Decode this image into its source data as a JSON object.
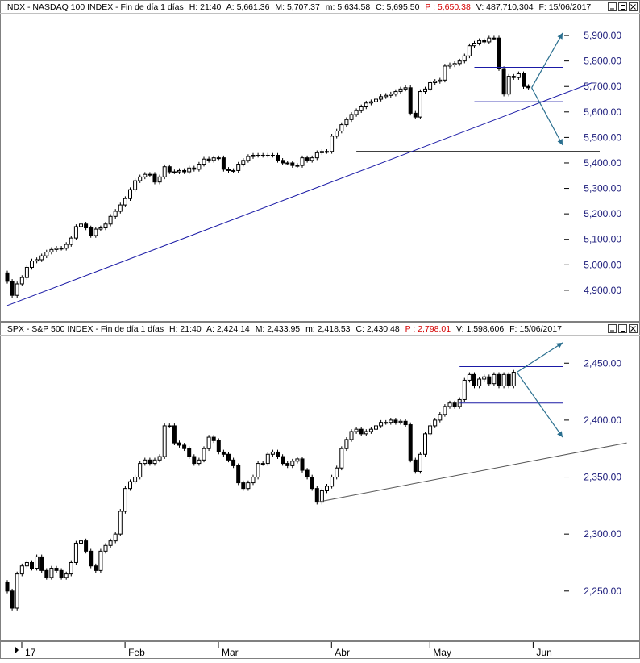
{
  "colors": {
    "panel_border": "#808080",
    "header_bg": "#ffffff",
    "candle": "#000000",
    "trendline_blue": "#1a1aa6",
    "trendline_black": "#000000",
    "projection_arrow": "#2a6f8f",
    "ytick_text": "#1a1a7a",
    "close_prev_red": "#d40000"
  },
  "panels": [
    {
      "id": "ndx",
      "header": {
        "symbol_desc": ".NDX - NASDAQ 100 INDEX - Fin de día 1 días",
        "h": "H: 21:40",
        "a": "A: 5,661.36",
        "m_high": "M: 5,707.37",
        "m_low": "m: 5,634.58",
        "c": "C: 5,695.50",
        "p": "P : 5,650.38",
        "v": "V: 487,710,304",
        "f": "F: 15/06/2017"
      },
      "window_icons": [
        "minimize-icon",
        "restore-icon",
        "close-icon"
      ]
    },
    {
      "id": "spx",
      "header": {
        "symbol_desc": ".SPX - S&P 500 INDEX - Fin de día 1 días",
        "h": "H: 21:40",
        "a": "A: 2,424.14",
        "m_high": "M: 2,433.95",
        "m_low": "m: 2,418.53",
        "c": "C: 2,430.48",
        "p": "P : 2,798.01",
        "v": "V: 1,598,606",
        "f": "F: 15/06/2017"
      },
      "window_icons": [
        "minimize-icon",
        "restore-icon",
        "close-icon"
      ]
    }
  ],
  "x_axis": {
    "labels": [
      "17",
      "Feb",
      "Mar",
      "Abr",
      "May",
      "Jun"
    ],
    "label_day_index": [
      0,
      21,
      40,
      63,
      83,
      104
    ]
  },
  "chart_data": [
    {
      "type": "candlestick",
      "title": ".NDX - NASDAQ 100 INDEX",
      "ylim": [
        4830,
        5935
      ],
      "yticks": [
        "5,900.00",
        "5,800.00",
        "5,700.00",
        "5,600.00",
        "5,500.00",
        "5,400.00",
        "5,300.00",
        "5,200.00",
        "5,100.00",
        "5,000.00",
        "4,900.00"
      ],
      "ytick_values": [
        5900,
        5800,
        5700,
        5600,
        5500,
        5400,
        5300,
        5200,
        5100,
        5000,
        4900
      ],
      "closes": [
        4935,
        4880,
        4925,
        4950,
        4990,
        5015,
        5020,
        5035,
        5050,
        5060,
        5065,
        5065,
        5080,
        5105,
        5150,
        5160,
        5145,
        5115,
        5140,
        5145,
        5160,
        5190,
        5210,
        5235,
        5260,
        5295,
        5330,
        5345,
        5355,
        5355,
        5325,
        5345,
        5385,
        5365,
        5365,
        5370,
        5365,
        5380,
        5375,
        5395,
        5415,
        5410,
        5420,
        5420,
        5375,
        5370,
        5370,
        5395,
        5410,
        5425,
        5430,
        5430,
        5430,
        5430,
        5430,
        5410,
        5400,
        5400,
        5390,
        5390,
        5420,
        5410,
        5420,
        5440,
        5445,
        5445,
        5505,
        5525,
        5550,
        5570,
        5590,
        5605,
        5620,
        5635,
        5640,
        5650,
        5660,
        5665,
        5670,
        5680,
        5690,
        5695,
        5595,
        5580,
        5680,
        5690,
        5715,
        5720,
        5725,
        5780,
        5785,
        5790,
        5800,
        5820,
        5860,
        5870,
        5880,
        5875,
        5890,
        5890,
        5770,
        5670,
        5740,
        5735,
        5750,
        5700,
        5695
      ],
      "range_box": {
        "top": 5775,
        "bottom": 5640
      },
      "support_level": 5445,
      "trendline": {
        "from": [
          0,
          4840
        ],
        "to": [
          119,
          5715
        ]
      },
      "projection_up_target": 5910,
      "projection_down_target": 5470
    },
    {
      "type": "candlestick",
      "title": ".SPX - S&P 500 INDEX",
      "ylim": [
        2218,
        2470
      ],
      "yticks": [
        "2,450.00",
        "2,400.00",
        "2,350.00",
        "2,300.00",
        "2,250.00"
      ],
      "ytick_values": [
        2450,
        2400,
        2350,
        2300,
        2250
      ],
      "closes": [
        2250,
        2235,
        2265,
        2272,
        2275,
        2270,
        2280,
        2268,
        2262,
        2270,
        2268,
        2262,
        2265,
        2275,
        2292,
        2294,
        2285,
        2272,
        2268,
        2285,
        2290,
        2294,
        2300,
        2320,
        2340,
        2346,
        2350,
        2362,
        2365,
        2362,
        2365,
        2368,
        2395,
        2395,
        2380,
        2378,
        2375,
        2368,
        2362,
        2365,
        2375,
        2385,
        2382,
        2372,
        2370,
        2365,
        2360,
        2345,
        2340,
        2345,
        2350,
        2362,
        2362,
        2370,
        2372,
        2368,
        2362,
        2360,
        2364,
        2366,
        2356,
        2350,
        2340,
        2328,
        2338,
        2342,
        2350,
        2358,
        2375,
        2383,
        2390,
        2392,
        2388,
        2390,
        2392,
        2395,
        2398,
        2398,
        2400,
        2398,
        2399,
        2396,
        2365,
        2355,
        2370,
        2388,
        2395,
        2400,
        2405,
        2412,
        2415,
        2412,
        2418,
        2435,
        2440,
        2430,
        2436,
        2438,
        2432,
        2440,
        2430,
        2440,
        2430,
        2442
      ],
      "range_box": {
        "top": 2447,
        "bottom": 2415
      },
      "trendline": {
        "from": [
          63,
          2328
        ],
        "to": [
          126,
          2380
        ]
      },
      "projection_up_target": 2468,
      "projection_down_target": 2385
    }
  ]
}
